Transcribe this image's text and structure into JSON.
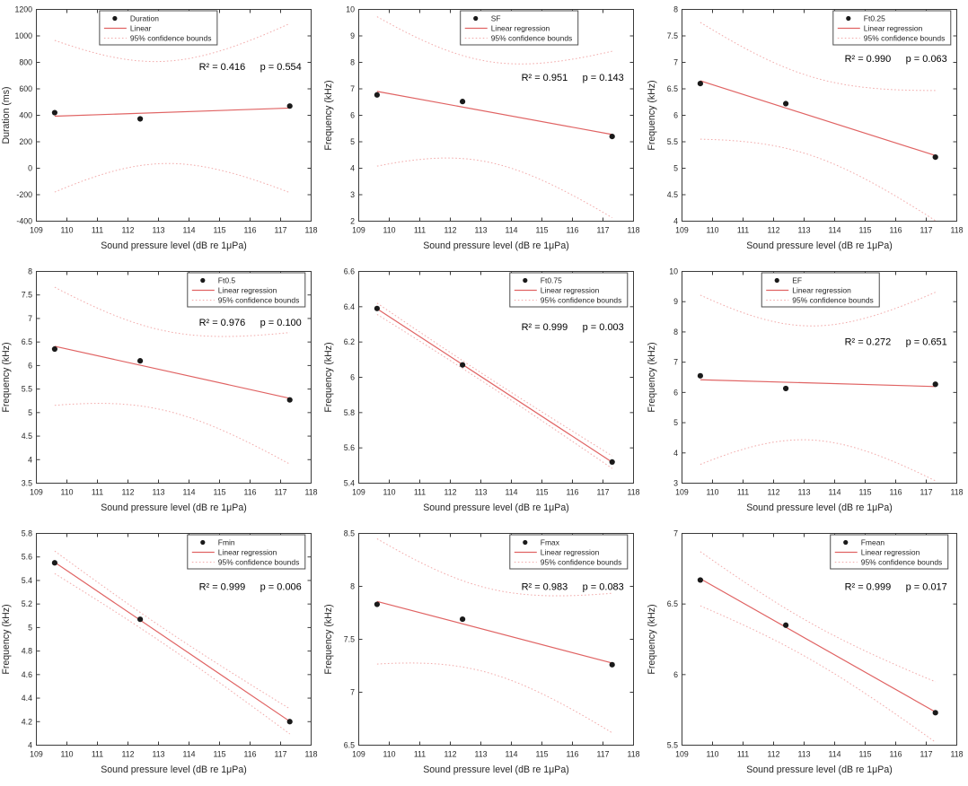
{
  "figure": {
    "description": "3x3 grid of scatter plots with linear regression fits and 95% confidence bounds",
    "background": "#ffffff"
  },
  "colors": {
    "fit_line": "#e06363",
    "confidence_bound": "#f2abab",
    "marker": "#1a1a1a",
    "axis": "#3a3a3a",
    "tick_text": "#262626",
    "annotation_text": "#000000",
    "legend_border": "#4d4d4d",
    "legend_fill": "#ffffff"
  },
  "chart_data": [
    {
      "type": "scatter",
      "series_label": "Duration",
      "legend_entries": [
        "Duration",
        "Linear",
        "95% confidence bounds"
      ],
      "legend_x_frac": 0.23,
      "xlabel": "Sound pressure level (dB re 1μPa)",
      "ylabel": "Duration (ms)",
      "xlim": [
        109,
        118
      ],
      "xticks": [
        109,
        110,
        111,
        112,
        113,
        114,
        115,
        116,
        117,
        118
      ],
      "ylim": [
        -400,
        1200
      ],
      "yticks": [
        -400,
        -200,
        0,
        200,
        400,
        600,
        800,
        1000,
        1200
      ],
      "x": [
        109.6,
        112.4,
        117.3
      ],
      "y": [
        420,
        373,
        470
      ],
      "fit": "linear regression",
      "bounds": "95% confidence",
      "r2_label": "R² = 0.416",
      "p_label": "p = 0.554",
      "annot_y_frac": 0.27
    },
    {
      "type": "scatter",
      "series_label": "SF",
      "legend_entries": [
        "SF",
        "Linear regression",
        "95% confidence bounds"
      ],
      "legend_x_frac": 0.37,
      "xlabel": "Sound pressure level (dB re 1μPa)",
      "ylabel": "Frequency (kHz)",
      "xlim": [
        109,
        118
      ],
      "xticks": [
        109,
        110,
        111,
        112,
        113,
        114,
        115,
        116,
        117,
        118
      ],
      "ylim": [
        2,
        10
      ],
      "yticks": [
        2,
        3,
        4,
        5,
        6,
        7,
        8,
        9,
        10
      ],
      "x": [
        109.6,
        112.4,
        117.3
      ],
      "y": [
        6.77,
        6.52,
        5.2
      ],
      "fit": "linear regression",
      "bounds": "95% confidence",
      "r2_label": "R² = 0.951",
      "p_label": "p = 0.143",
      "annot_y_frac": 0.32
    },
    {
      "type": "scatter",
      "series_label": "Ft0.25",
      "legend_entries": [
        "Ft0.25",
        "Linear regression",
        "95% confidence bounds"
      ],
      "legend_x_frac": 0.55,
      "xlabel": "Sound pressure level (dB re 1μPa)",
      "ylabel": "Frequency (kHz)",
      "xlim": [
        109,
        118
      ],
      "xticks": [
        109,
        110,
        111,
        112,
        113,
        114,
        115,
        116,
        117,
        118
      ],
      "ylim": [
        4,
        8
      ],
      "yticks": [
        4,
        4.5,
        5,
        5.5,
        6,
        6.5,
        7,
        7.5,
        8
      ],
      "x": [
        109.6,
        112.4,
        117.3
      ],
      "y": [
        6.6,
        6.22,
        5.21
      ],
      "fit": "linear regression",
      "bounds": "95% confidence",
      "r2_label": "R² = 0.990",
      "p_label": "p = 0.063",
      "annot_y_frac": 0.23
    },
    {
      "type": "scatter",
      "series_label": "Ft0.5",
      "legend_entries": [
        "Ft0.5",
        "Linear regression",
        "95% confidence bounds"
      ],
      "legend_x_frac": 0.55,
      "xlabel": "Sound pressure level (dB re 1μPa)",
      "ylabel": "Frequency (kHz)",
      "xlim": [
        109,
        118
      ],
      "xticks": [
        109,
        110,
        111,
        112,
        113,
        114,
        115,
        116,
        117,
        118
      ],
      "ylim": [
        3.5,
        8
      ],
      "yticks": [
        3.5,
        4,
        4.5,
        5,
        5.5,
        6,
        6.5,
        7,
        7.5,
        8
      ],
      "x": [
        109.6,
        112.4,
        117.3
      ],
      "y": [
        6.35,
        6.1,
        5.27
      ],
      "fit": "linear regression",
      "bounds": "95% confidence",
      "r2_label": "R² = 0.976",
      "p_label": "p = 0.100",
      "annot_y_frac": 0.24
    },
    {
      "type": "scatter",
      "series_label": "Ft0.75",
      "legend_entries": [
        "Ft0.75",
        "Linear regression",
        "95% confidence bounds"
      ],
      "legend_x_frac": 0.55,
      "xlabel": "Sound pressure level (dB re 1μPa)",
      "ylabel": "Frequency (kHz)",
      "xlim": [
        109,
        118
      ],
      "xticks": [
        109,
        110,
        111,
        112,
        113,
        114,
        115,
        116,
        117,
        118
      ],
      "ylim": [
        5.4,
        6.6
      ],
      "yticks": [
        5.4,
        5.6,
        5.8,
        6,
        6.2,
        6.4,
        6.6
      ],
      "x": [
        109.6,
        112.4,
        117.3
      ],
      "y": [
        6.39,
        6.07,
        5.52
      ],
      "fit": "linear regression",
      "bounds": "95% confidence",
      "r2_label": "R² = 0.999",
      "p_label": "p = 0.003",
      "annot_y_frac": 0.26
    },
    {
      "type": "scatter",
      "series_label": "EF",
      "legend_entries": [
        "EF",
        "Linear regression",
        "95% confidence bounds"
      ],
      "legend_x_frac": 0.29,
      "xlabel": "Sound pressure level (dB re 1μPa)",
      "ylabel": "Frequency (kHz)",
      "xlim": [
        109,
        118
      ],
      "xticks": [
        109,
        110,
        111,
        112,
        113,
        114,
        115,
        116,
        117,
        118
      ],
      "ylim": [
        3,
        10
      ],
      "yticks": [
        3,
        4,
        5,
        6,
        7,
        8,
        9,
        10
      ],
      "x": [
        109.6,
        112.4,
        117.3
      ],
      "y": [
        6.55,
        6.13,
        6.27
      ],
      "fit": "linear regression",
      "bounds": "95% confidence",
      "r2_label": "R² = 0.272",
      "p_label": "p = 0.651",
      "annot_y_frac": 0.33
    },
    {
      "type": "scatter",
      "series_label": "Fmin",
      "legend_entries": [
        "Fmin",
        "Linear regression",
        "95% confidence bounds"
      ],
      "legend_x_frac": 0.55,
      "xlabel": "Sound pressure level (dB re 1μPa)",
      "ylabel": "Frequency (kHz)",
      "xlim": [
        109,
        118
      ],
      "xticks": [
        109,
        110,
        111,
        112,
        113,
        114,
        115,
        116,
        117,
        118
      ],
      "ylim": [
        4,
        5.8
      ],
      "yticks": [
        4,
        4.2,
        4.4,
        4.6,
        4.8,
        5,
        5.2,
        5.4,
        5.6,
        5.8
      ],
      "x": [
        109.6,
        112.4,
        117.3
      ],
      "y": [
        5.55,
        5.07,
        4.2
      ],
      "fit": "linear regression",
      "bounds": "95% confidence",
      "r2_label": "R² = 0.999",
      "p_label": "p = 0.006",
      "annot_y_frac": 0.25
    },
    {
      "type": "scatter",
      "series_label": "Fmax",
      "legend_entries": [
        "Fmax",
        "Linear regression",
        "95% confidence bounds"
      ],
      "legend_x_frac": 0.55,
      "xlabel": "Sound pressure level (dB re 1μPa)",
      "ylabel": "Frequency (kHz)",
      "xlim": [
        109,
        118
      ],
      "xticks": [
        109,
        110,
        111,
        112,
        113,
        114,
        115,
        116,
        117,
        118
      ],
      "ylim": [
        6.5,
        8.5
      ],
      "yticks": [
        6.5,
        7,
        7.5,
        8,
        8.5
      ],
      "x": [
        109.6,
        112.4,
        117.3
      ],
      "y": [
        7.83,
        7.69,
        7.26
      ],
      "fit": "linear regression",
      "bounds": "95% confidence",
      "r2_label": "R² = 0.983",
      "p_label": "p = 0.083",
      "annot_y_frac": 0.25
    },
    {
      "type": "scatter",
      "series_label": "Fmean",
      "legend_entries": [
        "Fmean",
        "Linear regression",
        "95% confidence bounds"
      ],
      "legend_x_frac": 0.54,
      "xlabel": "Sound pressure level (dB re 1μPa)",
      "ylabel": "Frequency (kHz)",
      "xlim": [
        109,
        118
      ],
      "xticks": [
        109,
        110,
        111,
        112,
        113,
        114,
        115,
        116,
        117,
        118
      ],
      "ylim": [
        5.5,
        7
      ],
      "yticks": [
        5.5,
        6,
        6.5,
        7
      ],
      "x": [
        109.6,
        112.4,
        117.3
      ],
      "y": [
        6.67,
        6.35,
        5.73
      ],
      "fit": "linear regression",
      "bounds": "95% confidence",
      "r2_label": "R² = 0.999",
      "p_label": "p = 0.017",
      "annot_y_frac": 0.25
    }
  ]
}
